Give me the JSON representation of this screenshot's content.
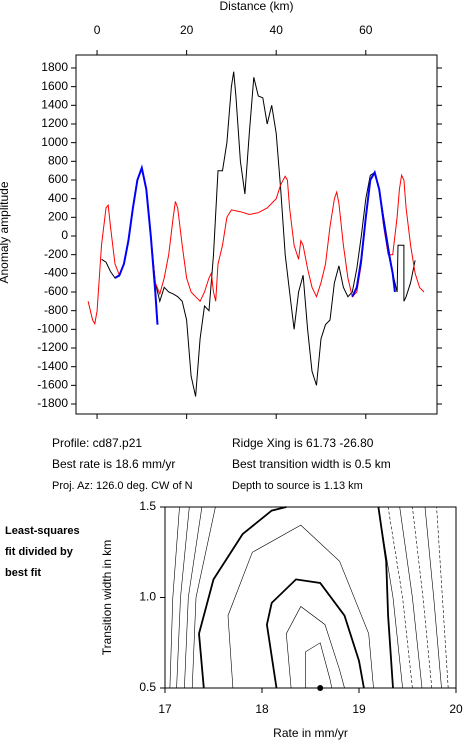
{
  "chart_data": [
    {
      "type": "line",
      "xlabel": "Distance (km)",
      "ylabel": "Anomaly amplitude",
      "xlim": [
        -4.7,
        75.9
      ],
      "xticks": [
        0,
        20,
        40,
        60
      ],
      "ylim": [
        -1907,
        1939
      ],
      "yticks": [
        -1800,
        -1600,
        -1400,
        -1200,
        -1000,
        -800,
        -600,
        -400,
        -200,
        0,
        200,
        400,
        600,
        800,
        1000,
        1200,
        1400,
        1600,
        1800
      ],
      "annotations": [
        "Profile: cd87.p21",
        "Best rate is 18.6 mm/yr",
        "Proj. Az: 126.0 deg. CW of N",
        "Ridge Xing is 61.73 -26.80",
        "Best transition width is 0.5 km",
        "Depth to source is   1.13 km"
      ],
      "series": [
        {
          "color": "#000000",
          "x": [
            1,
            2,
            3,
            4,
            5,
            6,
            7,
            8,
            9,
            10,
            11,
            12,
            13,
            14,
            15,
            16,
            17,
            18,
            19,
            20,
            21,
            22,
            23,
            24,
            25,
            26,
            27,
            28,
            29,
            30,
            30.5,
            31,
            32,
            33,
            34,
            35,
            36,
            37,
            38,
            39,
            40,
            41,
            42,
            43,
            44,
            45,
            46,
            47,
            48,
            49,
            50,
            51,
            52,
            53,
            54,
            55,
            56,
            57,
            58,
            59,
            60,
            61,
            62,
            63,
            64,
            65,
            66,
            67,
            67.2,
            68.5,
            68.5,
            69,
            70,
            71
          ],
          "values": [
            -250,
            -280,
            -380,
            -450,
            -430,
            -300,
            -50,
            300,
            600,
            730,
            500,
            0,
            -500,
            -700,
            -550,
            -600,
            -620,
            -650,
            -700,
            -900,
            -1500,
            -1720,
            -1100,
            -750,
            -800,
            -200,
            700,
            700,
            1000,
            1600,
            1760,
            1500,
            800,
            450,
            1100,
            1700,
            1500,
            1480,
            1200,
            1400,
            1100,
            500,
            -200,
            -600,
            -1000,
            -600,
            -420,
            -1000,
            -1450,
            -1600,
            -1100,
            -950,
            -900,
            -500,
            -320,
            -550,
            -650,
            -600,
            -350,
            0,
            400,
            650,
            680,
            500,
            200,
            -100,
            -400,
            -600,
            -100,
            -100,
            -700,
            -650,
            -500,
            -260
          ]
        },
        {
          "color": "#ff0000",
          "x": [
            -2,
            -1,
            -0.5,
            0,
            1,
            2,
            2.5,
            3,
            4,
            5,
            6,
            7,
            8,
            9,
            10,
            11,
            12,
            13,
            14,
            15,
            16,
            17,
            17.5,
            18,
            19,
            20,
            21,
            22,
            23,
            24,
            25,
            25.5,
            26,
            26.5,
            27,
            28,
            29,
            30,
            32,
            34,
            36,
            38,
            40,
            41,
            42,
            42.5,
            43,
            44,
            45,
            45.5,
            46,
            47,
            48,
            49,
            50,
            51,
            52,
            53,
            53.5,
            54,
            55,
            56,
            57,
            58,
            59,
            60,
            61,
            62,
            63,
            64,
            65,
            66,
            67,
            67.5,
            68,
            68.5,
            69,
            70,
            71,
            72,
            73
          ],
          "values": [
            -700,
            -900,
            -940,
            -800,
            -100,
            300,
            330,
            100,
            -300,
            -420,
            -300,
            -50,
            300,
            600,
            720,
            500,
            0,
            -500,
            -620,
            -450,
            -200,
            200,
            370,
            300,
            -100,
            -450,
            -600,
            -650,
            -700,
            -600,
            -450,
            -400,
            -600,
            -700,
            -300,
            -100,
            200,
            280,
            260,
            230,
            250,
            300,
            400,
            550,
            640,
            600,
            300,
            -100,
            -250,
            -50,
            -100,
            -350,
            -550,
            -650,
            -500,
            -300,
            100,
            400,
            470,
            350,
            -100,
            -450,
            -650,
            -600,
            -300,
            200,
            600,
            670,
            500,
            100,
            -200,
            -200,
            200,
            500,
            650,
            600,
            300,
            -100,
            -400,
            -550,
            -600
          ]
        },
        {
          "color": "#0000ff",
          "x": [
            4,
            5,
            6,
            7,
            8,
            9,
            10,
            11,
            12,
            13,
            13.5,
            13.5,
            57,
            58,
            59,
            60,
            61,
            62,
            63,
            64,
            65,
            66,
            66.5
          ],
          "values": [
            -450,
            -420,
            -300,
            -50,
            300,
            600,
            730,
            500,
            0,
            -600,
            -950,
            null,
            -650,
            -550,
            -250,
            200,
            600,
            680,
            500,
            150,
            -150,
            -400,
            -600
          ]
        }
      ]
    },
    {
      "type": "contour",
      "xlabel": "Rate in mm/yr",
      "ylabel": "Transition width in km",
      "note": [
        "Least-squares",
        "fit divided by",
        "best fit"
      ],
      "xlim": [
        17,
        20
      ],
      "xticks": [
        17,
        18,
        19,
        20
      ],
      "ylim": [
        0.5,
        1.5
      ],
      "yticks": [
        {
          "value": 0.5,
          "label": "0.5"
        },
        {
          "value": 1,
          "label": "1.0"
        },
        {
          "value": 1.5,
          "label": "1.5"
        }
      ],
      "points": {
        "x": [
          18.6
        ],
        "y": [
          0.5
        ]
      },
      "contours": [
        {
          "style": "thick",
          "x": [
            18.15,
            18.05,
            18.1,
            18.35,
            18.6,
            18.85,
            19.0,
            19.05
          ],
          "y": [
            0.5,
            0.85,
            0.97,
            1.1,
            1.08,
            0.9,
            0.65,
            0.5
          ]
        },
        {
          "style": "thick",
          "x": [
            17.4,
            17.35,
            17.5,
            17.8,
            18.1,
            18.25
          ],
          "y": [
            0.5,
            0.8,
            1.1,
            1.35,
            1.48,
            1.5
          ]
        },
        {
          "style": "thick",
          "x": [
            19.2,
            19.28,
            19.3,
            19.35
          ],
          "y": [
            1.5,
            1.2,
            0.9,
            0.5
          ]
        },
        {
          "style": "thin",
          "x": [
            18.3,
            18.25,
            18.4,
            18.65,
            18.8,
            18.85
          ],
          "y": [
            0.5,
            0.8,
            0.95,
            0.85,
            0.6,
            0.5
          ]
        },
        {
          "style": "thin",
          "x": [
            18.45,
            18.45,
            18.6,
            18.7,
            18.72
          ],
          "y": [
            0.5,
            0.7,
            0.75,
            0.55,
            0.5
          ]
        },
        {
          "style": "thin",
          "x": [
            17.7,
            17.65,
            17.9,
            18.4,
            18.8,
            19.1,
            19.15
          ],
          "y": [
            0.5,
            0.9,
            1.25,
            1.4,
            1.2,
            0.8,
            0.5
          ]
        },
        {
          "style": "thin",
          "x": [
            17.05,
            17.08,
            17.15
          ],
          "y": [
            0.5,
            1.0,
            1.5
          ]
        },
        {
          "style": "thin",
          "x": [
            17.12,
            17.16,
            17.25
          ],
          "y": [
            0.5,
            1.0,
            1.5
          ]
        },
        {
          "style": "thin",
          "x": [
            17.2,
            17.24,
            17.38
          ],
          "y": [
            0.5,
            1.0,
            1.5
          ]
        },
        {
          "style": "thin",
          "x": [
            17.28,
            17.32,
            17.52
          ],
          "y": [
            0.5,
            1.0,
            1.5
          ]
        },
        {
          "style": "thin",
          "x": [
            19.45,
            19.35,
            19.2
          ],
          "y": [
            0.5,
            1.0,
            1.5
          ]
        },
        {
          "style": "dashed",
          "x": [
            19.55,
            19.45,
            19.3
          ],
          "y": [
            0.5,
            1.0,
            1.5
          ]
        },
        {
          "style": "thin",
          "x": [
            19.65,
            19.55,
            19.42
          ],
          "y": [
            0.5,
            1.0,
            1.5
          ]
        },
        {
          "style": "dashed",
          "x": [
            19.75,
            19.66,
            19.55
          ],
          "y": [
            0.5,
            1.0,
            1.5
          ]
        },
        {
          "style": "thin",
          "x": [
            19.85,
            19.77,
            19.68
          ],
          "y": [
            0.5,
            1.0,
            1.5
          ]
        },
        {
          "style": "dashed",
          "x": [
            19.92,
            19.86,
            19.8
          ],
          "y": [
            0.5,
            1.0,
            1.5
          ]
        }
      ]
    }
  ]
}
